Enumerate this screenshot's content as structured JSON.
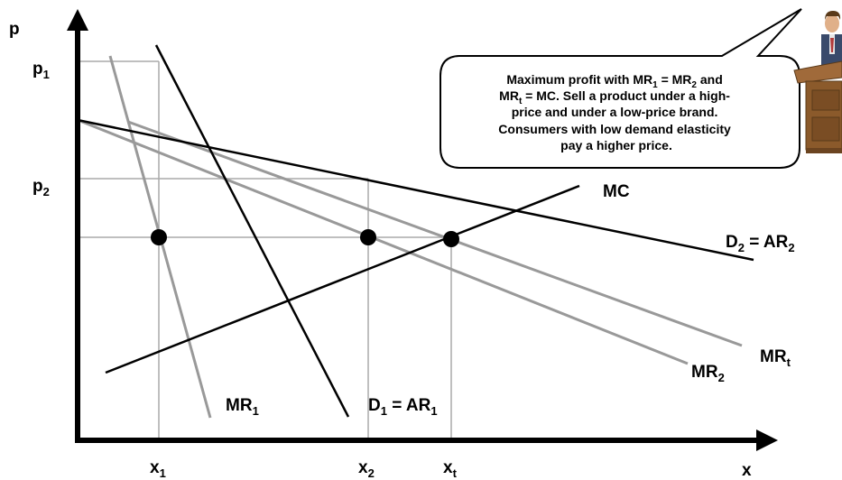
{
  "axes": {
    "y_label": "p",
    "x_label": "x",
    "p1": {
      "base": "p",
      "sub": "1"
    },
    "p2": {
      "base": "p",
      "sub": "2"
    },
    "x1": {
      "base": "x",
      "sub": "1"
    },
    "x2": {
      "base": "x",
      "sub": "2"
    },
    "xt": {
      "base": "x",
      "sub": "t"
    }
  },
  "curves": {
    "mc": "MC",
    "d2": {
      "a": "D",
      "a_sub": "2",
      "eq": " = AR",
      "b_sub": "2"
    },
    "d1": {
      "a": "D",
      "a_sub": "1",
      "eq": " = AR",
      "b_sub": "1"
    },
    "mr1": {
      "base": "MR",
      "sub": "1"
    },
    "mr2": {
      "base": "MR",
      "sub": "2"
    },
    "mrt": {
      "base": "MR",
      "sub": "t"
    }
  },
  "callout": {
    "line1": {
      "t1": "Maximum profit with MR",
      "s1": "1",
      "t2": " = MR",
      "s2": "2",
      "t3": " and"
    },
    "line2": {
      "t1": "MR",
      "s1": "t",
      "t2": " =  MC. Sell a product under a high-"
    },
    "line3": "price and under a low-price brand.",
    "line4": "Consumers with low demand elasticity",
    "line5": "pay a higher price."
  },
  "colors": {
    "axis": "#000000",
    "demand": "#000000",
    "marginal_revenue": "#999999",
    "guide": "#aaaaaa",
    "podium": "#8b5a2b"
  },
  "icons": [
    "speaker-at-podium-icon"
  ]
}
